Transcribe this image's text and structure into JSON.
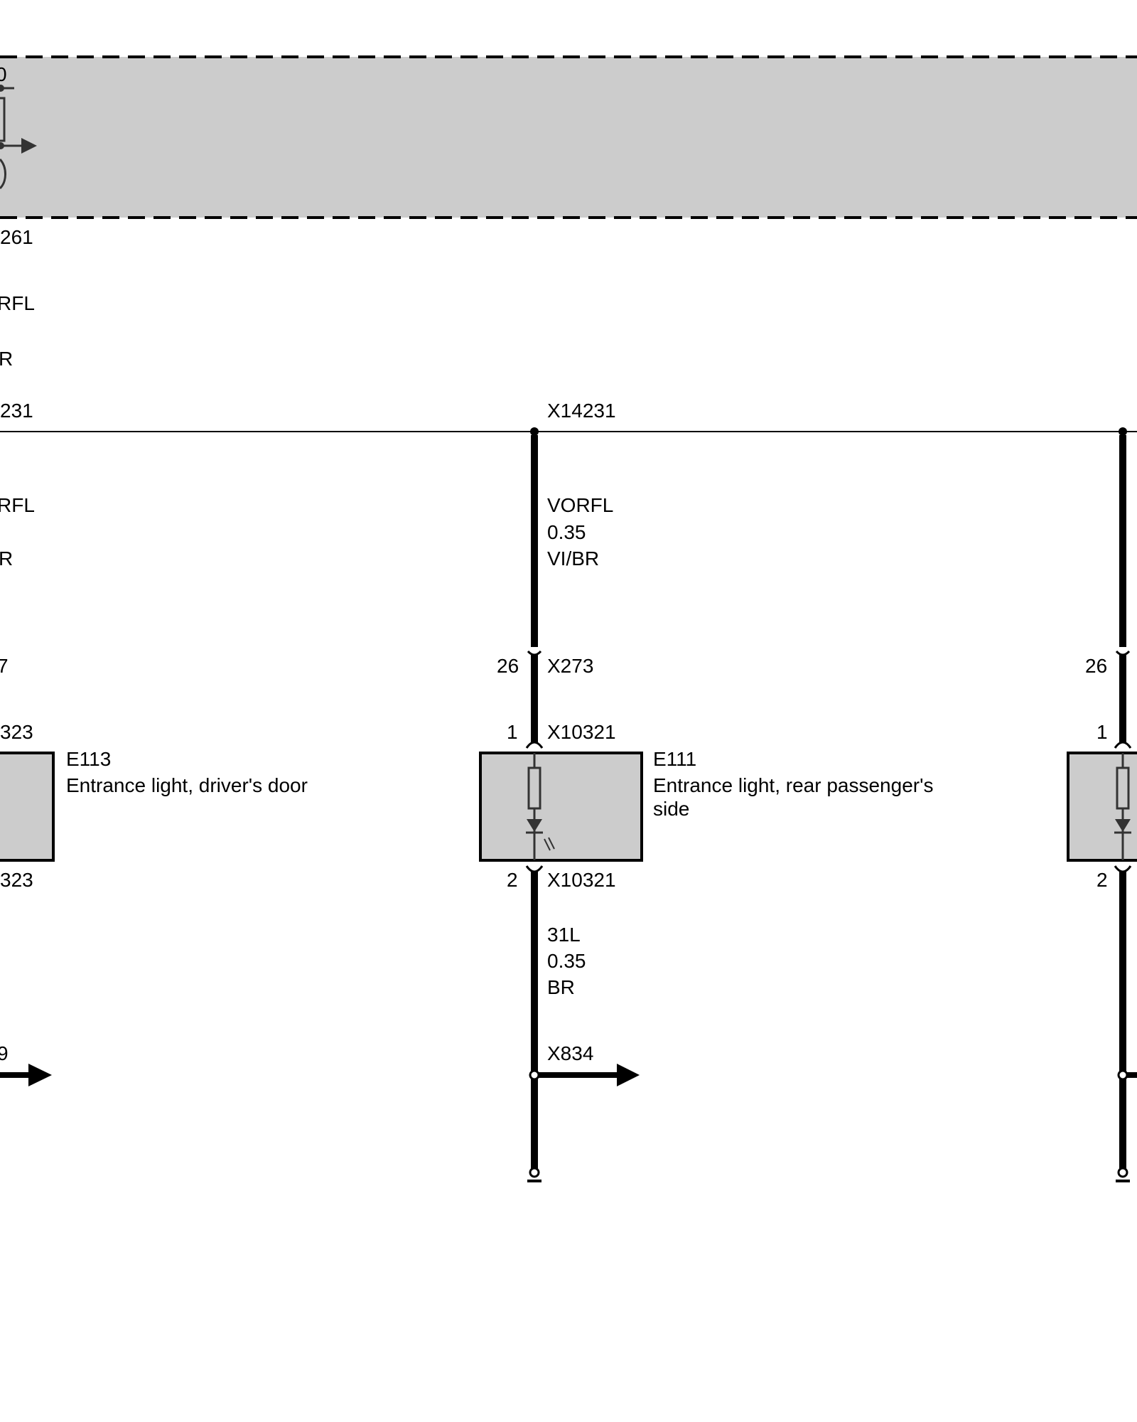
{
  "colors": {
    "component_fill": "#cccccc",
    "wire": "#000000",
    "internal": "#333333"
  },
  "top_module": {
    "pin_fragment": "0",
    "connector_fragment": "261",
    "signal_fragment": "RFL",
    "color_fragment": "R"
  },
  "bus": {
    "connector_fragment_left": "231",
    "connector_center": "X14231"
  },
  "left": {
    "signal_fragment": "RFL",
    "color_fragment": "R",
    "pin_fragment": "7",
    "conn_top_fragment": "323",
    "conn_bottom_fragment": "323",
    "ground_fragment": "9",
    "component_id": "E113",
    "component_desc": "Entrance light, driver's door"
  },
  "center": {
    "wire_top": {
      "signal": "VORFL",
      "gauge": "0.35",
      "color": "VI/BR"
    },
    "pin_26": "26",
    "conn_x273": "X273",
    "pin_1": "1",
    "conn_top": "X10321",
    "pin_2": "2",
    "conn_bottom": "X10321",
    "component_id": "E111",
    "component_desc_line1": "Entrance light, rear passenger's",
    "component_desc_line2": "side",
    "wire_bottom": {
      "signal": "31L",
      "gauge": "0.35",
      "color": "BR"
    },
    "ground_conn": "X834"
  },
  "right": {
    "pin_26": "26",
    "pin_1": "1",
    "pin_2": "2"
  }
}
